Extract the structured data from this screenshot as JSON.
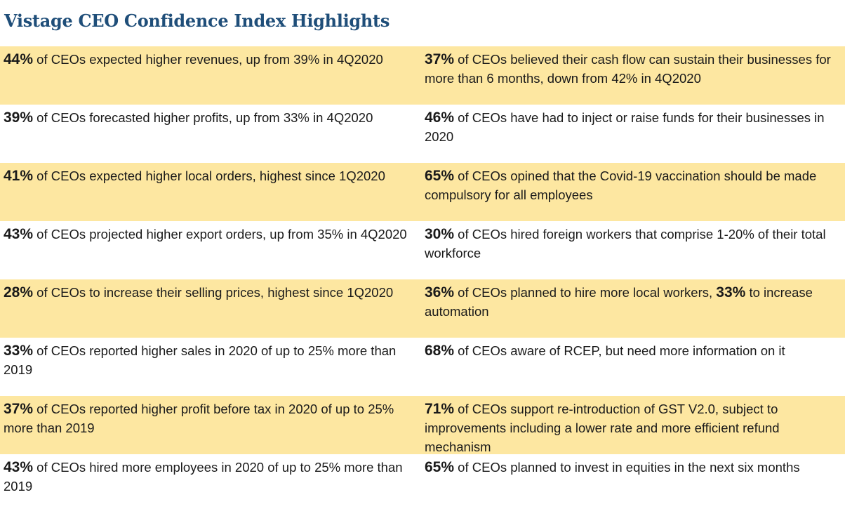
{
  "title": "Vistage CEO Confidence Index Highlights",
  "rows": [
    {
      "left": {
        "pct": "44%",
        "text": " of CEOs expected higher revenues, up from 39% in 4Q2020"
      },
      "right": {
        "pct": "37%",
        "text": " of CEOs believed their cash flow can sustain their businesses for more than 6 months, down from 42% in 4Q2020"
      }
    },
    {
      "left": {
        "pct": "39%",
        "text": " of CEOs forecasted higher profits, up from 33% in 4Q2020"
      },
      "right": {
        "pct": "46%",
        "text": " of CEOs have had to inject or raise funds for their businesses in 2020"
      }
    },
    {
      "left": {
        "pct": "41%",
        "text": " of CEOs expected higher local orders, highest since 1Q2020"
      },
      "right": {
        "pct": "65%",
        "text": " of CEOs opined that the Covid-19 vaccination should be made compulsory for all employees"
      }
    },
    {
      "left": {
        "pct": "43%",
        "text": " of CEOs projected higher export orders, up from 35% in 4Q2020"
      },
      "right": {
        "pct": "30%",
        "text": " of CEOs hired foreign workers that comprise 1-20% of their total workforce"
      }
    },
    {
      "left": {
        "pct": "28%",
        "text": " of CEOs to increase their selling prices, highest since 1Q2020"
      },
      "right": {
        "pct": "36%",
        "text": " of CEOs planned to hire more local workers, ",
        "pct2": "33%",
        "text2": " to increase automation"
      }
    },
    {
      "left": {
        "pct": "33%",
        "text": " of CEOs reported higher sales in 2020 of up to 25% more than 2019"
      },
      "right": {
        "pct": "68%",
        "text": " of CEOs aware of RCEP, but need more information on it"
      }
    },
    {
      "left": {
        "pct": "37%",
        "text": " of CEOs reported higher profit before tax in 2020 of up to 25% more than 2019"
      },
      "right": {
        "pct": "71%",
        "text": " of CEOs support re-introduction of GST V2.0, subject to improvements including a lower rate and more efficient refund mechanism"
      }
    },
    {
      "left": {
        "pct": "43%",
        "text": " of CEOs hired more employees in 2020 of up to 25% more than 2019"
      },
      "right": {
        "pct": "65%",
        "text": " of CEOs planned to invest in equities in the next six months"
      }
    }
  ],
  "colors": {
    "title": "#1f4e79",
    "highlight": "#fde7a1",
    "text": "#1a1a1a"
  }
}
